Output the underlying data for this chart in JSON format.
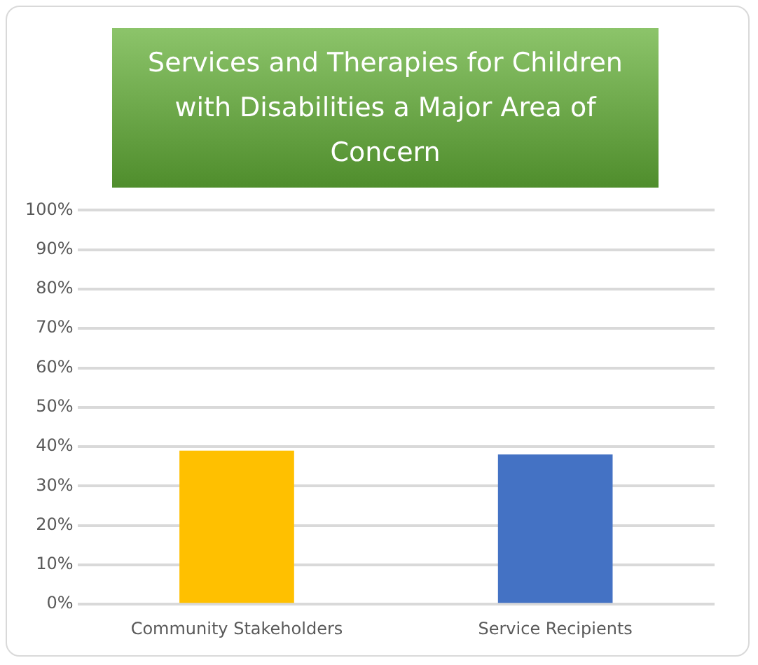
{
  "chart_data": {
    "type": "bar",
    "title": "Services and Therapies for Children with Disabilities a Major Area of Concern",
    "categories": [
      "Community Stakeholders",
      "Service Recipients"
    ],
    "values": [
      39,
      38
    ],
    "colors": [
      "#ffc000",
      "#4472c4"
    ],
    "ylim": [
      0,
      100
    ],
    "yticks": [
      {
        "value": 0,
        "label": "0%"
      },
      {
        "value": 10,
        "label": "10%"
      },
      {
        "value": 20,
        "label": "20%"
      },
      {
        "value": 30,
        "label": "30%"
      },
      {
        "value": 40,
        "label": "40%"
      },
      {
        "value": 50,
        "label": "50%"
      },
      {
        "value": 60,
        "label": "60%"
      },
      {
        "value": 70,
        "label": "70%"
      },
      {
        "value": 80,
        "label": "80%"
      },
      {
        "value": 90,
        "label": "90%"
      },
      {
        "value": 100,
        "label": "100%"
      }
    ],
    "grid": "y"
  }
}
